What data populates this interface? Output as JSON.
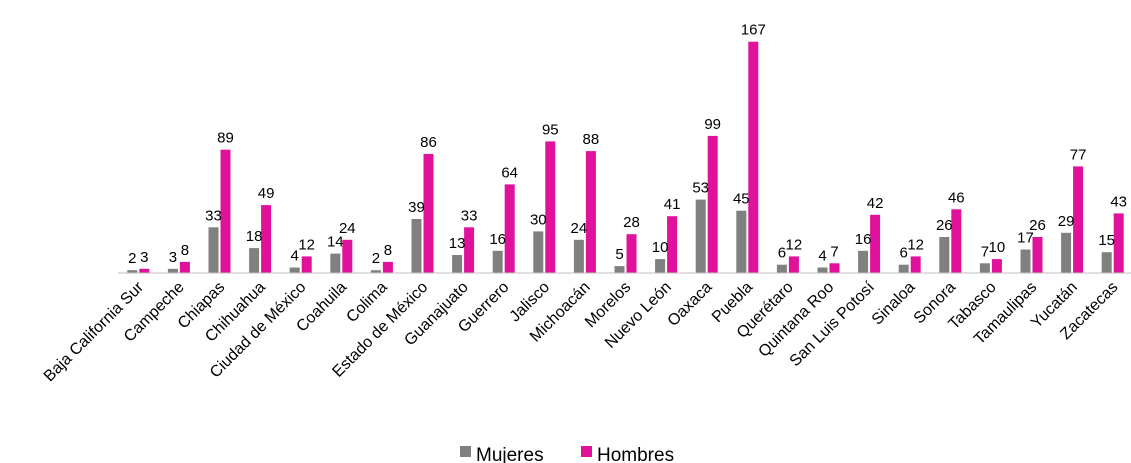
{
  "chart_data": {
    "type": "bar",
    "title": "",
    "xlabel": "",
    "ylabel": "",
    "ylim": [
      0,
      170
    ],
    "grid": false,
    "legend_position": "bottom",
    "categories": [
      "Baja California Sur",
      "Campeche",
      "Chiapas",
      "Chihuahua",
      "Ciudad de México",
      "Coahuila",
      "Colima",
      "Estado de México",
      "Guanajuato",
      "Guerrero",
      "Jalisco",
      "Michoacán",
      "Morelos",
      "Nuevo León",
      "Oaxaca",
      "Puebla",
      "Querétaro",
      "Quintana Roo",
      "San Luis Potosí",
      "Sinaloa",
      "Sonora",
      "Tabasco",
      "Tamaulipas",
      "Yucatán",
      "Zacatecas"
    ],
    "series": [
      {
        "name": "Mujeres",
        "color": "#808080",
        "values": [
          2,
          3,
          33,
          18,
          4,
          14,
          2,
          39,
          13,
          16,
          30,
          24,
          5,
          10,
          53,
          45,
          6,
          4,
          16,
          6,
          26,
          7,
          17,
          29,
          15
        ]
      },
      {
        "name": "Hombres",
        "color": "#E0119B",
        "values": [
          3,
          8,
          89,
          49,
          12,
          24,
          8,
          86,
          33,
          64,
          95,
          88,
          28,
          41,
          99,
          167,
          12,
          7,
          42,
          12,
          46,
          10,
          26,
          77,
          43
        ]
      }
    ]
  }
}
